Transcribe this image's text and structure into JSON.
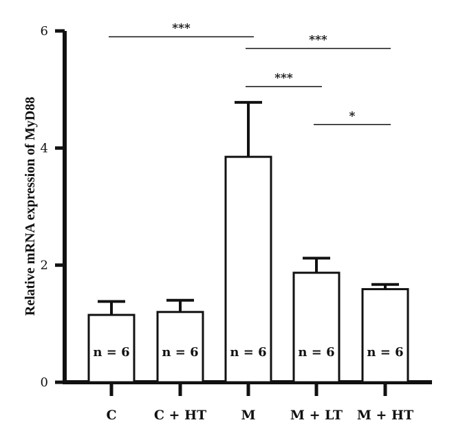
{
  "chart_data": {
    "type": "bar",
    "title": "",
    "xlabel": "",
    "ylabel": "Relative mRNA expression of MyD88",
    "ylim": [
      0,
      6
    ],
    "yticks": [
      0,
      2,
      4,
      6
    ],
    "categories": [
      "C",
      "C + HT",
      "M",
      "M + LT",
      "M + HT"
    ],
    "values": [
      1.15,
      1.2,
      3.85,
      1.87,
      1.59
    ],
    "errors": [
      0.23,
      0.2,
      0.93,
      0.25,
      0.08
    ],
    "n_labels": [
      "n = 6",
      "n = 6",
      "n = 6",
      "n = 6",
      "n = 6"
    ],
    "significance": [
      {
        "from": 0,
        "to": 2,
        "label": "***",
        "y": 5.9
      },
      {
        "from": 2,
        "to": 4,
        "label": "***",
        "y": 5.7
      },
      {
        "from": 2,
        "to": 3,
        "label": "***",
        "y": 5.05
      },
      {
        "from": 3,
        "to": 4,
        "label": "*",
        "y": 4.4
      }
    ],
    "grid": false,
    "legend": "none"
  }
}
